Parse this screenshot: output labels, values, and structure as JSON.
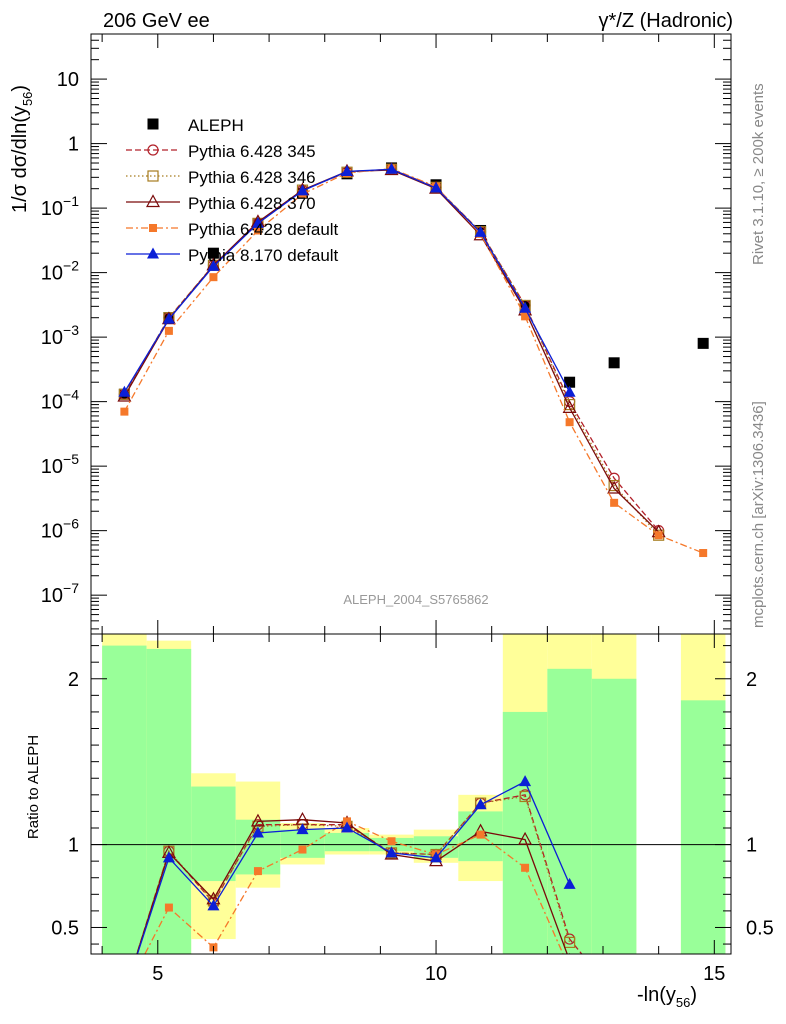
{
  "header": {
    "left_label": "206 GeV ee",
    "right_label": "γ*/Z (Hadronic)"
  },
  "side_labels": {
    "rivet": "Rivet 3.1.10, ≥ 200k events",
    "mcplots": "mcplots.cern.ch [arXiv:1306.3436]"
  },
  "watermark": "ALEPH_2004_S5765862",
  "colors": {
    "aleph": "#000000",
    "p345": "#b2212a",
    "p346": "#a67c1f",
    "p370": "#7a0a0a",
    "p6def": "#f5782a",
    "p8def": "#0b1fd6",
    "band_inner": "#99ff99",
    "band_outer": "#ffff99"
  },
  "chart_data": [
    {
      "type": "line",
      "panel": "main",
      "ylabel_main": "1/σ  dσ/dln(y",
      "ylabel_sub": "56",
      "ylabel_close": ")",
      "yscale": "log",
      "xlim": [
        3.8,
        15.3
      ],
      "ylim": [
        2.5e-08,
        50
      ],
      "y_ticks": [
        {
          "v": 10,
          "label": "10"
        },
        {
          "v": 1,
          "label": "1"
        },
        {
          "v": 0.1,
          "base": "10",
          "exp": "−1"
        },
        {
          "v": 0.01,
          "base": "10",
          "exp": "−2"
        },
        {
          "v": 0.001,
          "base": "10",
          "exp": "−3"
        },
        {
          "v": 0.0001,
          "base": "10",
          "exp": "−4"
        },
        {
          "v": 1e-05,
          "base": "10",
          "exp": "−5"
        },
        {
          "v": 1e-06,
          "base": "10",
          "exp": "−6"
        },
        {
          "v": 1e-07,
          "base": "10",
          "exp": "−7"
        }
      ],
      "legend_position": "top-left",
      "series": [
        {
          "name": "ALEPH",
          "key": "aleph",
          "marker": "square-filled",
          "style": "none",
          "x": [
            4.4,
            5.2,
            6.0,
            6.8,
            7.6,
            8.4,
            9.2,
            10.0,
            10.8,
            11.6,
            12.4,
            13.2,
            14.8
          ],
          "y": [
            0.00013,
            0.002,
            0.02,
            0.055,
            0.17,
            0.34,
            0.42,
            0.23,
            0.045,
            0.003,
            0.0002,
            0.0004,
            0.0008
          ]
        },
        {
          "name": "Pythia 6.428 345",
          "key": "p345",
          "marker": "circle-open",
          "style": "dashed",
          "x": [
            4.4,
            5.2,
            6.0,
            6.8,
            7.6,
            8.4,
            9.2,
            10.0,
            10.8,
            11.6,
            12.4,
            13.2,
            14.0
          ],
          "y": [
            0.00013,
            0.002,
            0.013,
            0.058,
            0.19,
            0.36,
            0.4,
            0.21,
            0.043,
            0.0031,
            0.0001,
            6.5e-06,
            1e-06
          ]
        },
        {
          "name": "Pythia 6.428 346",
          "key": "p346",
          "marker": "square-open",
          "style": "dotted",
          "x": [
            4.4,
            5.2,
            6.0,
            6.8,
            7.6,
            8.4,
            9.2,
            10.0,
            10.8,
            11.6,
            12.4,
            13.2,
            14.0
          ],
          "y": [
            0.00013,
            0.002,
            0.013,
            0.058,
            0.19,
            0.36,
            0.4,
            0.21,
            0.043,
            0.0031,
            9e-05,
            5e-06,
            8.5e-07
          ]
        },
        {
          "name": "Pythia 6.428 370",
          "key": "p370",
          "marker": "triangle-open",
          "style": "solid",
          "x": [
            4.4,
            5.2,
            6.0,
            6.8,
            7.6,
            8.4,
            9.2,
            10.0,
            10.8,
            11.6,
            12.4,
            13.2,
            14.0
          ],
          "y": [
            0.00012,
            0.0019,
            0.013,
            0.061,
            0.19,
            0.37,
            0.39,
            0.2,
            0.038,
            0.0026,
            8e-05,
            4.5e-06,
            9.5e-07
          ]
        },
        {
          "name": "Pythia 6.428 default",
          "key": "p6def",
          "marker": "square-filled-small",
          "style": "dashdot",
          "x": [
            4.4,
            5.2,
            6.0,
            6.8,
            7.6,
            8.4,
            9.2,
            10.0,
            10.8,
            11.6,
            12.4,
            13.2,
            14.0,
            14.8
          ],
          "y": [
            7e-05,
            0.00125,
            0.0085,
            0.045,
            0.165,
            0.35,
            0.41,
            0.215,
            0.04,
            0.0021,
            4.8e-05,
            2.7e-06,
            8.5e-07,
            4.5e-07
          ]
        },
        {
          "name": "Pythia 8.170 default",
          "key": "p8def",
          "marker": "triangle-filled",
          "style": "solid",
          "x": [
            4.4,
            5.2,
            6.0,
            6.8,
            7.6,
            8.4,
            9.2,
            10.0,
            10.8,
            11.6,
            12.4
          ],
          "y": [
            0.00014,
            0.0019,
            0.0125,
            0.058,
            0.185,
            0.37,
            0.4,
            0.205,
            0.042,
            0.0028,
            0.00014
          ]
        }
      ]
    },
    {
      "type": "line",
      "panel": "ratio",
      "ylabel": "Ratio to ALEPH",
      "xlabel_main": "-ln(y",
      "xlabel_sub": "56",
      "xlabel_close": ")",
      "xlim": [
        3.8,
        15.3
      ],
      "ylim": [
        0.34,
        2.27
      ],
      "x_ticks": [
        5,
        10,
        15
      ],
      "y_ticks": [
        0.5,
        1,
        2
      ],
      "reference_line": 1.0,
      "bands": [
        {
          "x0": 4.0,
          "x1": 4.8,
          "inner": [
            0.34,
            2.2
          ],
          "outer": [
            0.34,
            2.27
          ]
        },
        {
          "x0": 4.8,
          "x1": 5.6,
          "inner": [
            0.34,
            2.18
          ],
          "outer": [
            0.34,
            2.23
          ]
        },
        {
          "x0": 5.6,
          "x1": 6.4,
          "inner": [
            0.78,
            1.35
          ],
          "outer": [
            0.43,
            1.43
          ]
        },
        {
          "x0": 6.4,
          "x1": 7.2,
          "inner": [
            0.82,
            1.15
          ],
          "outer": [
            0.74,
            1.38
          ]
        },
        {
          "x0": 7.2,
          "x1": 8.0,
          "inner": [
            0.92,
            1.09
          ],
          "outer": [
            0.88,
            1.13
          ]
        },
        {
          "x0": 8.0,
          "x1": 8.8,
          "inner": [
            0.96,
            1.07
          ],
          "outer": [
            0.94,
            1.1
          ]
        },
        {
          "x0": 8.8,
          "x1": 9.6,
          "inner": [
            0.96,
            1.04
          ],
          "outer": [
            0.94,
            1.06
          ]
        },
        {
          "x0": 9.6,
          "x1": 10.4,
          "inner": [
            0.92,
            1.05
          ],
          "outer": [
            0.89,
            1.09
          ]
        },
        {
          "x0": 10.4,
          "x1": 11.2,
          "inner": [
            0.9,
            1.2
          ],
          "outer": [
            0.78,
            1.3
          ]
        },
        {
          "x0": 11.2,
          "x1": 12.0,
          "inner": [
            0.34,
            1.8
          ],
          "outer": [
            0.34,
            2.27
          ]
        },
        {
          "x0": 12.0,
          "x1": 12.8,
          "inner": [
            0.34,
            2.06
          ],
          "outer": [
            0.34,
            2.27
          ]
        },
        {
          "x0": 12.8,
          "x1": 13.6,
          "inner": [
            0.34,
            2.0
          ],
          "outer": [
            0.34,
            2.27
          ]
        },
        {
          "x0": 14.4,
          "x1": 15.2,
          "inner": [
            0.34,
            1.87
          ],
          "outer": [
            0.34,
            2.27
          ]
        }
      ],
      "series": [
        {
          "key": "p345",
          "marker": "circle-open",
          "style": "dashed",
          "x": [
            4.4,
            5.2,
            6.0,
            6.8,
            7.6,
            8.4,
            9.2,
            10.0,
            10.8,
            11.6,
            12.4,
            13.2
          ],
          "y": [
            0.1,
            0.96,
            0.65,
            1.12,
            1.12,
            1.12,
            0.95,
            0.94,
            1.25,
            1.3,
            0.43,
            0.1
          ]
        },
        {
          "key": "p346",
          "marker": "square-open",
          "style": "dotted",
          "x": [
            4.4,
            5.2,
            6.0,
            6.8,
            7.6,
            8.4,
            9.2,
            10.0,
            10.8,
            11.6,
            12.4
          ],
          "y": [
            0.1,
            0.96,
            0.66,
            1.11,
            1.12,
            1.11,
            0.95,
            0.94,
            1.25,
            1.29,
            0.41
          ]
        },
        {
          "key": "p370",
          "marker": "triangle-open",
          "style": "solid",
          "x": [
            4.4,
            5.2,
            6.0,
            6.8,
            7.6,
            8.4,
            9.2,
            10.0,
            10.8,
            11.6,
            12.4
          ],
          "y": [
            0.1,
            0.95,
            0.67,
            1.14,
            1.15,
            1.13,
            0.94,
            0.9,
            1.08,
            1.03,
            0.3
          ]
        },
        {
          "key": "p6def",
          "marker": "square-filled-small",
          "style": "dashdot",
          "x": [
            4.4,
            5.2,
            6.0,
            6.8,
            7.6,
            8.4,
            9.2,
            10.0,
            10.8,
            11.6,
            12.4
          ],
          "y": [
            0.1,
            0.62,
            0.38,
            0.84,
            0.97,
            1.14,
            1.02,
            0.94,
            1.06,
            0.86,
            0.25
          ]
        },
        {
          "key": "p8def",
          "marker": "triangle-filled",
          "style": "solid",
          "x": [
            4.4,
            5.2,
            6.0,
            6.8,
            7.6,
            8.4,
            9.2,
            10.0,
            10.8,
            11.6,
            12.4
          ],
          "y": [
            0.1,
            0.92,
            0.63,
            1.07,
            1.09,
            1.1,
            0.95,
            0.92,
            1.24,
            1.38,
            0.76
          ]
        }
      ]
    }
  ]
}
